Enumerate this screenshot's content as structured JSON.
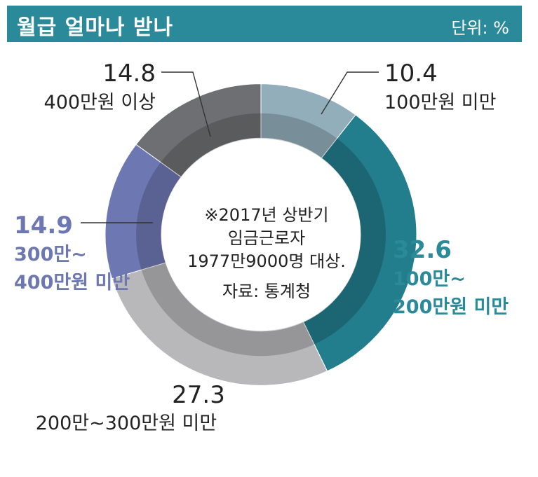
{
  "header": {
    "title": "월급 얼마나 받나",
    "unit": "단위: %"
  },
  "note": {
    "lines": [
      "※2017년 상반기",
      "임금근로자",
      "1977만9000명 대상."
    ],
    "source": "자료: 통계청"
  },
  "chart_data": {
    "type": "pie",
    "donut": true,
    "title": "월급 얼마나 받나",
    "unit": "단위: %",
    "slices": [
      {
        "label": "100만원 미만",
        "value": 10.4,
        "color": "#93aebb",
        "label_color": "#222222"
      },
      {
        "label": "100만~200만원 미만",
        "value": 32.6,
        "color": "#227d8c",
        "label_color": "#2b8a99"
      },
      {
        "label": "200만~300만원 미만",
        "value": 27.3,
        "color": "#b8b8bb",
        "label_color": "#222222"
      },
      {
        "label": "300만~400만원 미만",
        "value": 14.9,
        "color": "#6d78b2",
        "label_color": "#6d78b2"
      },
      {
        "label": "400만원 이상",
        "value": 14.8,
        "color": "#6e6f72",
        "label_color": "#222222"
      }
    ]
  }
}
